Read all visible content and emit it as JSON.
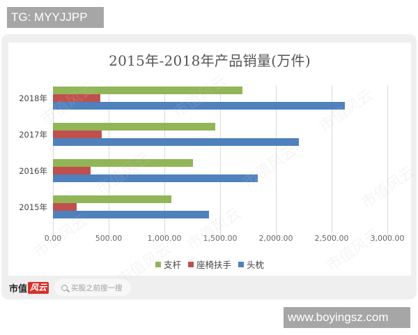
{
  "overlay": {
    "top_tag": "TG: MYYJJPP",
    "bottom_tag": "www.boyingsz.com"
  },
  "chart_data": {
    "type": "bar",
    "orientation": "horizontal",
    "title": "2015年-2018年产品销量(万件)",
    "xlabel": "",
    "ylabel": "",
    "categories": [
      "2015年",
      "2016年",
      "2017年",
      "2018年"
    ],
    "series": [
      {
        "name": "支杆",
        "color": "#92b557",
        "values": [
          1065,
          1255,
          1455,
          1700
        ]
      },
      {
        "name": "座椅扶手",
        "color": "#c0504d",
        "values": [
          215,
          335,
          435,
          425
        ]
      },
      {
        "name": "头枕",
        "color": "#4f81bd",
        "values": [
          1400,
          1840,
          2205,
          2620
        ]
      }
    ],
    "xlim": [
      0,
      3000
    ],
    "xticks": [
      "0.00",
      "500.00",
      "1,000.00",
      "1,500.00",
      "2,000.00",
      "2,500.00",
      "3,000.00"
    ],
    "grid": true,
    "legend_position": "bottom"
  },
  "footer": {
    "brand_text": "市值",
    "brand_badge": "风云",
    "search_placeholder": "买股之前搜一搜"
  },
  "watermark_text": "市值风云"
}
